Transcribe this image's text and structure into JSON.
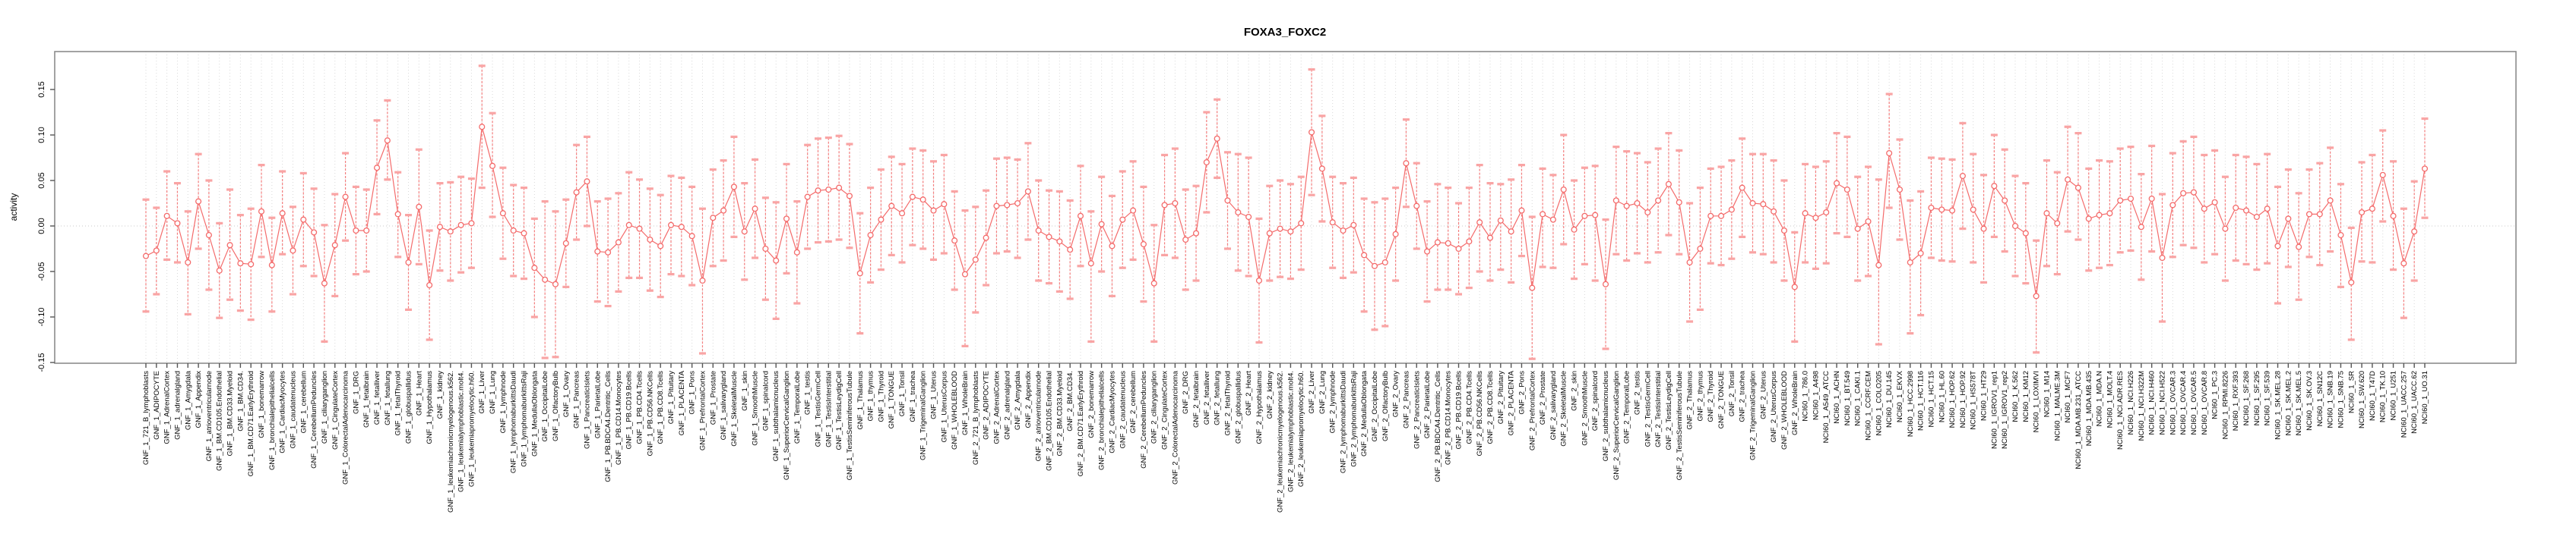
{
  "title": "FOXA3_FOXC2",
  "y_axis": {
    "label": "activity",
    "tick_labels": [
      "-0.15",
      "-0.10",
      "-0.05",
      "0.00",
      "0.05",
      "0.10",
      "0.15"
    ],
    "tick_values": [
      -0.15,
      -0.1,
      -0.05,
      0.0,
      0.05,
      0.1,
      0.15
    ]
  },
  "colors": {
    "point_line": "#f46b6b",
    "error_cap": "#f9a4a4",
    "error_stem": "#f46b6b",
    "gridline": "#d9d9d9",
    "zero_line": "#c9c9c9",
    "box_border": "#8c8c8c",
    "tick": "#555555",
    "background": "#ffffff"
  },
  "chart_data": {
    "type": "line",
    "title": "FOXA3_FOXC2",
    "xlabel": "",
    "ylabel": "activity",
    "ylim": [
      -0.152,
      0.192
    ],
    "grid": "vertical-dotted-per-category plus dotted zero line",
    "legend_position": "none",
    "marker": "open-circle-with-error-bars",
    "categories": [
      "GNF_1_721_B_lymphoblasts",
      "GNF_1_ADIPOCYTE",
      "GNF_1_AdrenalCortex",
      "GNF_1_adrenalgland",
      "GNF_1_Amygdala",
      "GNF_1_Appendix",
      "GNF_1_atrioventricularnode",
      "GNF_1_BM.CD105.Endothelial",
      "GNF_1_BM.CD33.Myeloid",
      "GNF_1_BM.CD34.",
      "GNF_1_BM.CD71.EarlyErythroid",
      "GNF_1_bonemarrow",
      "GNF_1_bronchialepithelialcells",
      "GNF_1_CardiacMyocytes",
      "GNF_1_caudatenucleus",
      "GNF_1_cerebellum",
      "GNF_1_CerebellumPeduncles",
      "GNF_1_ciliaryganglion",
      "GNF_1_CingulateCortex",
      "GNF_1_ColorectalAdenocarcinoma",
      "GNF_1_DRG",
      "GNF_1_fetalbrain",
      "GNF_1_fetalliver",
      "GNF_1_fetallung",
      "GNF_1_fetalThyroid",
      "GNF_1_globuspallidus",
      "GNF_1_Heart",
      "GNF_1_Hypothalamus",
      "GNF_1_kidney",
      "GNF_1_leukemiachronicmyelogenous.k562.",
      "GNF_1_leukemialymphoblastic.molt4.",
      "GNF_1_leukemiapromyelocytic.h60.",
      "GNF_1_Liver",
      "GNF_1_Lung",
      "GNF_1_lymphnode",
      "GNF_1_lymphomaburkittsDaudi",
      "GNF_1_lymphomaburkittsRaji",
      "GNF_1_MedullaOblongata",
      "GNF_1_OccipitalLobe",
      "GNF_1_OlfactoryBulb",
      "GNF_1_Ovary",
      "GNF_1_Pancreas",
      "GNF_1_PancreaticIslets",
      "GNF_1_ParietalLobe",
      "GNF_1_PB.BDCA4.Dentritic_Cells",
      "GNF_1_PB.CD14.Monocytes",
      "GNF_1_PB.CD19.Bcells",
      "GNF_1_PB.CD4.Tcells",
      "GNF_1_PB.CD56.NKCells",
      "GNF_1_PB.CD8.Tcells",
      "GNF_1_Pituitary",
      "GNF_1_PLACENTA",
      "GNF_1_Pons",
      "GNF_1_PrefrontalCortex",
      "GNF_1_Prostate",
      "GNF_1_salivarygland",
      "GNF_1_SkeletalMuscle",
      "GNF_1_skin",
      "GNF_1_SmoothMuscle",
      "GNF_1_spinalcord",
      "GNF_1_subthalamicnucleus",
      "GNF_1_SuperiorCervicalGanglion",
      "GNF_1_TemporalLobe",
      "GNF_1_testis",
      "GNF_1_TestisGermCell",
      "GNF_1_TestisInterstitial",
      "GNF_1_TestisLeydigCell",
      "GNF_1_TestisSeminiferousTubule",
      "GNF_1_Thalamus",
      "GNF_1_thymus",
      "GNF_1_Thyroid",
      "GNF_1_TONGUE",
      "GNF_1_Tonsil",
      "GNF_1_trachea",
      "GNF_1_TrigeminalGanglion",
      "GNF_1_Uterus",
      "GNF_1_UterusCorpus",
      "GNF_1_WHOLEBLOOD",
      "GNF_1_WholeBrain",
      "GNF_2_721_B_lymphoblasts",
      "GNF_2_ADIPOCYTE",
      "GNF_2_AdrenalCortex",
      "GNF_2_adrenalgland",
      "GNF_2_Amygdala",
      "GNF_2_Appendix",
      "GNF_2_atrioventricularnode",
      "GNF_2_BM.CD105.Endothelial",
      "GNF_2_BM.CD33.Myeloid",
      "GNF_2_BM.CD34.",
      "GNF_2_BM.CD71.EarlyErythroid",
      "GNF_2_bonemarrow",
      "GNF_2_bronchialepithelialcells",
      "GNF_2_CardiacMyocytes",
      "GNF_2_caudatenucleus",
      "GNF_2_cerebellum",
      "GNF_2_CerebellumPeduncles",
      "GNF_2_ciliaryganglion",
      "GNF_2_CingulateCortex",
      "GNF_2_ColorectalAdenocarcinoma",
      "GNF_2_DRG",
      "GNF_2_fetalbrain",
      "GNF_2_fetalliver",
      "GNF_2_fetallung",
      "GNF_2_fetalThyroid",
      "GNF_2_globuspallidus",
      "GNF_2_Heart",
      "GNF_2_Hypothalamus",
      "GNF_2_kidney",
      "GNF_2_leukemiachronicmyelogenous.k562.",
      "GNF_2_leukemialymphoblastic.molt4.",
      "GNF_2_leukemiapromyelocytic.h60.",
      "GNF_2_Liver",
      "GNF_2_Lung",
      "GNF_2_lymphnode",
      "GNF_2_lymphomaburkittsDaudi",
      "GNF_2_lymphomaburkittsRaji",
      "GNF_2_MedullaOblongata",
      "GNF_2_OccipitalLobe",
      "GNF_2_OlfactoryBulb",
      "GNF_2_Ovary",
      "GNF_2_Pancreas",
      "GNF_2_PancreaticIslets",
      "GNF_2_ParietalLobe",
      "GNF_2_PB.BDCA4.Dentritic_Cells",
      "GNF_2_PB.CD14.Monocytes",
      "GNF_2_PB.CD19.Bcells",
      "GNF_2_PB.CD4.Tcells",
      "GNF_2_PB.CD56.NKCells",
      "GNF_2_PB.CD8.Tcells",
      "GNF_2_Pituitary",
      "GNF_2_PLACENTA",
      "GNF_2_Pons",
      "GNF_2_PrefrontalCortex",
      "GNF_2_Prostate",
      "GNF_2_salivarygland",
      "GNF_2_SkeletalMuscle",
      "GNF_2_skin",
      "GNF_2_SmoothMuscle",
      "GNF_2_spinalcord",
      "GNF_2_subthalamicnucleus",
      "GNF_2_SuperiorCervicalGanglion",
      "GNF_2_TemporalLobe",
      "GNF_2_testis",
      "GNF_2_TestisGermCell",
      "GNF_2_TestisInterstitial",
      "GNF_2_TestisLeydigCell",
      "GNF_2_TestisSeminiferousTubule",
      "GNF_2_Thalamus",
      "GNF_2_thymus",
      "GNF_2_Thyroid",
      "GNF_2_TONGUE",
      "GNF_2_Tonsil",
      "GNF_2_trachea",
      "GNF_2_TrigeminalGanglion",
      "GNF_2_Uterus",
      "GNF_2_UterusCorpus",
      "GNF_2_WHOLEBLOOD",
      "GNF_2_WholeBrain",
      "NCI60_1_786.0",
      "NCI60_1_A498",
      "NCI60_1_A549_ATCC",
      "NCI60_1_ACHN",
      "NCI60_1_BT.549",
      "NCI60_1_CAKI.1",
      "NCI60_1_CCRF.CEM",
      "NCI60_1_COLO205",
      "NCI60_1_DU.145",
      "NCI60_1_EKVX",
      "NCI60_1_HCC.2998",
      "NCI60_1_HCT.116",
      "NCI60_1_HCT.15",
      "NCI60_1_HL.60",
      "NCI60_1_HOP.62",
      "NCI60_1_HOP.92",
      "NCI60_1_HS578T",
      "NCI60_1_HT29",
      "NCI60_1_IGROV1_rep1",
      "NCI60_1_IGROV1_rep2",
      "NCI60_1_K.562",
      "NCI60_1_KM12",
      "NCI60_1_LOXIMVI",
      "NCI60_1_M14",
      "NCI60_1_MALME.3M",
      "NCI60_1_MCF7",
      "NCI60_1_MDA.MB.231_ATCC",
      "NCI60_1_MDA.MB.435",
      "NCI60_1_MDA.N",
      "NCI60_1_MOLT.4",
      "NCI60_1_NCI.ADR.RES",
      "NCI60_1_NCI.H226",
      "NCI60_1_NCI.H322M",
      "NCI60_1_NCI.H460",
      "NCI60_1_NCI.H522",
      "NCI60_1_OVCAR.3",
      "NCI60_1_OVCAR.4",
      "NCI60_1_OVCAR.5",
      "NCI60_1_OVCAR.8",
      "NCI60_1_PC.3",
      "NCI60_1_RPMI.8226",
      "NCI60_1_RXF.393",
      "NCI60_1_SF.268",
      "NCI60_1_SF.295",
      "NCI60_1_SF.539",
      "NCI60_1_SK.MEL.28",
      "NCI60_1_SK.MEL.2",
      "NCI60_1_SK.MEL.5",
      "NCI60_1_SK.OV.3",
      "NCI60_1_SN12C",
      "NCI60_1_SNB.19",
      "NCI60_1_SNB.75",
      "NCI60_1_SR",
      "NCI60_1_SW.620",
      "NCI60_1_T47D",
      "NCI60_1_TK.10",
      "NCI60_1_U251",
      "NCI60_1_UACC.257",
      "NCI60_1_UACC.62",
      "NCI60_1_UO.31"
    ],
    "series": [
      {
        "name": "activity",
        "values": [
          -0.033,
          -0.027,
          0.011,
          0.003,
          -0.04,
          0.027,
          -0.01,
          -0.049,
          -0.021,
          -0.041,
          -0.042,
          0.016,
          -0.043,
          0.014,
          -0.027,
          0.007,
          -0.007,
          -0.063,
          -0.021,
          0.032,
          -0.005,
          -0.005,
          0.064,
          0.094,
          0.013,
          -0.04,
          0.021,
          -0.065,
          -0.001,
          -0.006,
          0.001,
          0.003,
          0.109,
          0.066,
          0.014,
          -0.005,
          -0.008,
          -0.046,
          -0.059,
          -0.064,
          -0.019,
          0.037,
          0.049,
          -0.028,
          -0.029,
          -0.018,
          0.001,
          -0.003,
          -0.015,
          -0.022,
          0.001,
          -0.001,
          -0.011,
          -0.06,
          0.009,
          0.017,
          0.043,
          -0.006,
          0.019,
          -0.025,
          -0.038,
          0.008,
          -0.029,
          0.032,
          0.039,
          0.04,
          0.042,
          0.033,
          -0.052,
          -0.01,
          0.007,
          0.022,
          0.014,
          0.032,
          0.029,
          0.017,
          0.024,
          -0.016,
          -0.053,
          -0.037,
          -0.013,
          0.022,
          0.023,
          0.025,
          0.038,
          -0.005,
          -0.012,
          -0.017,
          -0.026,
          0.011,
          -0.041,
          0.002,
          -0.022,
          0.007,
          0.017,
          -0.02,
          -0.063,
          0.023,
          0.025,
          -0.015,
          -0.008,
          0.07,
          0.096,
          0.028,
          0.015,
          0.01,
          -0.06,
          -0.008,
          -0.003,
          -0.006,
          0.003,
          0.103,
          0.063,
          0.004,
          -0.005,
          0.001,
          -0.032,
          -0.044,
          -0.04,
          -0.009,
          0.069,
          0.022,
          -0.028,
          -0.018,
          -0.019,
          -0.025,
          -0.017,
          0.004,
          -0.013,
          0.006,
          -0.006,
          0.017,
          -0.068,
          0.013,
          0.007,
          0.04,
          -0.004,
          0.011,
          0.012,
          -0.064,
          0.028,
          0.022,
          0.025,
          0.015,
          0.028,
          0.046,
          0.026,
          -0.04,
          -0.025,
          0.011,
          0.011,
          0.018,
          0.042,
          0.025,
          0.024,
          0.016,
          -0.005,
          -0.067,
          0.014,
          0.009,
          0.015,
          0.047,
          0.04,
          -0.003,
          0.005,
          -0.043,
          0.08,
          0.04,
          -0.04,
          -0.03,
          0.02,
          0.018,
          0.017,
          0.055,
          0.018,
          -0.003,
          0.044,
          0.028,
          0.0,
          -0.008,
          -0.077,
          0.014,
          0.003,
          0.051,
          0.042,
          0.008,
          0.012,
          0.014,
          0.028,
          0.03,
          -0.001,
          0.03,
          -0.035,
          0.023,
          0.036,
          0.037,
          0.019,
          0.026,
          -0.003,
          0.02,
          0.017,
          0.01,
          0.019,
          -0.022,
          0.008,
          -0.023,
          0.013,
          0.013,
          0.028,
          -0.01,
          -0.062,
          0.015,
          0.019,
          0.056,
          0.011,
          -0.041,
          -0.006,
          0.063
        ],
        "lower": [
          -0.094,
          -0.075,
          -0.037,
          -0.04,
          -0.097,
          -0.025,
          -0.07,
          -0.101,
          -0.081,
          -0.093,
          -0.103,
          -0.034,
          -0.094,
          -0.031,
          -0.075,
          -0.044,
          -0.055,
          -0.127,
          -0.077,
          -0.016,
          -0.053,
          -0.05,
          0.013,
          0.051,
          -0.034,
          -0.092,
          -0.042,
          -0.125,
          -0.049,
          -0.06,
          -0.051,
          -0.046,
          0.042,
          0.01,
          -0.036,
          -0.055,
          -0.058,
          -0.1,
          -0.145,
          -0.144,
          -0.067,
          -0.015,
          0.0,
          -0.083,
          -0.088,
          -0.072,
          -0.057,
          -0.057,
          -0.071,
          -0.078,
          -0.053,
          -0.055,
          -0.065,
          -0.14,
          -0.044,
          -0.038,
          -0.012,
          -0.059,
          -0.035,
          -0.081,
          -0.102,
          -0.052,
          -0.085,
          -0.025,
          -0.018,
          -0.017,
          -0.015,
          -0.024,
          -0.118,
          -0.062,
          -0.048,
          -0.032,
          -0.04,
          -0.021,
          -0.025,
          -0.037,
          -0.03,
          -0.07,
          -0.132,
          -0.095,
          -0.065,
          -0.03,
          -0.028,
          -0.035,
          -0.015,
          -0.06,
          -0.063,
          -0.072,
          -0.08,
          -0.044,
          -0.127,
          -0.05,
          -0.077,
          -0.046,
          -0.037,
          -0.083,
          -0.127,
          -0.032,
          -0.035,
          -0.07,
          -0.06,
          0.015,
          0.053,
          -0.025,
          -0.049,
          -0.055,
          -0.128,
          -0.06,
          -0.056,
          -0.058,
          -0.048,
          0.034,
          0.005,
          -0.046,
          -0.057,
          -0.051,
          -0.094,
          -0.114,
          -0.11,
          -0.06,
          0.021,
          -0.025,
          -0.083,
          -0.07,
          -0.07,
          -0.075,
          -0.068,
          -0.05,
          -0.06,
          -0.048,
          -0.062,
          -0.033,
          -0.146,
          -0.045,
          -0.046,
          -0.02,
          -0.058,
          -0.042,
          -0.06,
          -0.135,
          -0.031,
          -0.038,
          -0.03,
          -0.04,
          -0.029,
          -0.01,
          -0.031,
          -0.105,
          -0.092,
          -0.041,
          -0.043,
          -0.036,
          -0.012,
          -0.029,
          -0.031,
          -0.04,
          -0.06,
          -0.127,
          -0.04,
          -0.047,
          -0.041,
          -0.008,
          -0.012,
          -0.06,
          -0.055,
          -0.13,
          0.02,
          -0.015,
          -0.118,
          -0.098,
          -0.035,
          -0.038,
          -0.039,
          -0.003,
          -0.04,
          -0.062,
          -0.012,
          -0.028,
          -0.055,
          -0.063,
          -0.139,
          -0.044,
          -0.053,
          -0.006,
          -0.015,
          -0.049,
          -0.046,
          -0.043,
          -0.029,
          -0.027,
          -0.059,
          -0.028,
          -0.105,
          -0.034,
          -0.021,
          -0.024,
          -0.04,
          -0.031,
          -0.06,
          -0.038,
          -0.042,
          -0.048,
          -0.041,
          -0.085,
          -0.045,
          -0.081,
          -0.034,
          -0.043,
          -0.028,
          -0.067,
          -0.125,
          -0.039,
          -0.04,
          0.005,
          -0.048,
          -0.101,
          -0.06,
          0.009
        ],
        "upper": [
          0.029,
          0.02,
          0.06,
          0.047,
          0.016,
          0.079,
          0.05,
          0.003,
          0.04,
          0.012,
          0.019,
          0.067,
          0.009,
          0.06,
          0.021,
          0.058,
          0.041,
          0.001,
          0.035,
          0.08,
          0.043,
          0.04,
          0.116,
          0.138,
          0.059,
          0.012,
          0.084,
          -0.005,
          0.047,
          0.048,
          0.054,
          0.052,
          0.176,
          0.124,
          0.064,
          0.045,
          0.042,
          0.008,
          0.027,
          0.016,
          0.029,
          0.089,
          0.098,
          0.027,
          0.03,
          0.036,
          0.059,
          0.051,
          0.041,
          0.034,
          0.055,
          0.053,
          0.043,
          0.019,
          0.062,
          0.072,
          0.098,
          0.047,
          0.073,
          0.031,
          0.026,
          0.068,
          0.027,
          0.089,
          0.096,
          0.097,
          0.099,
          0.09,
          0.014,
          0.042,
          0.062,
          0.076,
          0.068,
          0.085,
          0.083,
          0.071,
          0.078,
          0.038,
          0.017,
          0.021,
          0.039,
          0.074,
          0.075,
          0.073,
          0.091,
          0.05,
          0.039,
          0.038,
          0.028,
          0.066,
          0.016,
          0.054,
          0.033,
          0.06,
          0.071,
          0.043,
          0.001,
          0.078,
          0.085,
          0.04,
          0.044,
          0.125,
          0.139,
          0.081,
          0.079,
          0.075,
          0.008,
          0.044,
          0.05,
          0.046,
          0.054,
          0.172,
          0.121,
          0.054,
          0.047,
          0.053,
          0.03,
          0.026,
          0.03,
          0.042,
          0.117,
          0.069,
          0.027,
          0.046,
          0.042,
          0.025,
          0.042,
          0.067,
          0.047,
          0.046,
          0.051,
          0.067,
          0.01,
          0.063,
          0.056,
          0.1,
          0.05,
          0.064,
          0.066,
          0.007,
          0.087,
          0.082,
          0.08,
          0.07,
          0.085,
          0.102,
          0.083,
          0.025,
          0.042,
          0.063,
          0.065,
          0.072,
          0.096,
          0.079,
          0.079,
          0.072,
          0.05,
          -0.007,
          0.068,
          0.065,
          0.071,
          0.102,
          0.098,
          0.054,
          0.065,
          0.051,
          0.145,
          0.095,
          0.028,
          0.038,
          0.075,
          0.074,
          0.073,
          0.113,
          0.079,
          0.056,
          0.1,
          0.084,
          0.055,
          0.047,
          -0.016,
          0.072,
          0.059,
          0.109,
          0.102,
          0.063,
          0.072,
          0.071,
          0.085,
          0.087,
          0.057,
          0.088,
          0.035,
          0.08,
          0.093,
          0.098,
          0.078,
          0.083,
          0.054,
          0.078,
          0.076,
          0.068,
          0.079,
          0.043,
          0.062,
          0.036,
          0.062,
          0.069,
          0.086,
          0.046,
          -0.002,
          0.07,
          0.078,
          0.105,
          0.071,
          0.019,
          0.049,
          0.118
        ]
      }
    ]
  }
}
